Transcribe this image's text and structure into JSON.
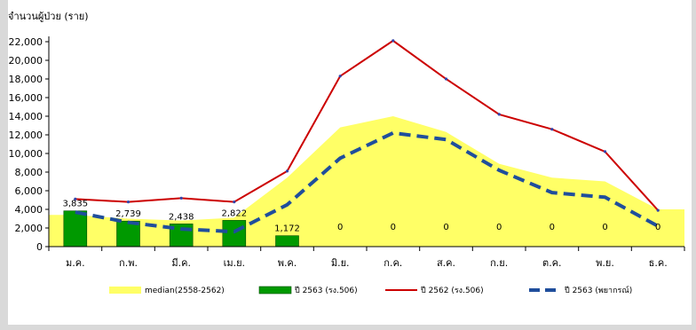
{
  "chart_data": {
    "type": "bar",
    "ylabel": "จำนวนผู้ป่วย (ราย)",
    "ylim": [
      0,
      22000
    ],
    "yticks": [
      "0",
      "2,000",
      "4,000",
      "6,000",
      "8,000",
      "10,000",
      "12,000",
      "14,000",
      "16,000",
      "18,000",
      "20,000",
      "22,000"
    ],
    "categories": [
      "ม.ค.",
      "ก.พ.",
      "มี.ค.",
      "เม.ย.",
      "พ.ค.",
      "มิ.ย.",
      "ก.ค.",
      "ส.ค.",
      "ก.ย.",
      "ต.ค.",
      "พ.ย.",
      "ธ.ค."
    ],
    "series": [
      {
        "name": "median(2558-2562)",
        "type": "area",
        "color": "#ffff66",
        "values": [
          3400,
          3000,
          2800,
          3100,
          7400,
          12800,
          14000,
          12300,
          8900,
          7400,
          7000,
          4000
        ]
      },
      {
        "name": "ปี 2563 (รง.506)",
        "type": "bar",
        "color": "#009900",
        "values": [
          3835,
          2739,
          2438,
          2822,
          1172,
          0,
          0,
          0,
          0,
          0,
          0,
          0
        ],
        "labels": [
          "3,835",
          "2,739",
          "2,438",
          "2,822",
          "1,172",
          "0",
          "0",
          "0",
          "0",
          "0",
          "0",
          "0"
        ]
      },
      {
        "name": "ปี 2562 (รง.506)",
        "type": "line",
        "color": "#cc0000",
        "values": [
          5100,
          4800,
          5200,
          4800,
          8100,
          18300,
          22100,
          18000,
          14200,
          12600,
          10200,
          3900
        ]
      },
      {
        "name": "ปี 2563 (พยากรณ์)",
        "type": "dashed-line",
        "color": "#1f4e9c",
        "values": [
          3700,
          2600,
          1900,
          1600,
          4500,
          9500,
          12200,
          11500,
          8200,
          5800,
          5300,
          2200
        ]
      }
    ],
    "grid": false,
    "legend": "bottom"
  }
}
